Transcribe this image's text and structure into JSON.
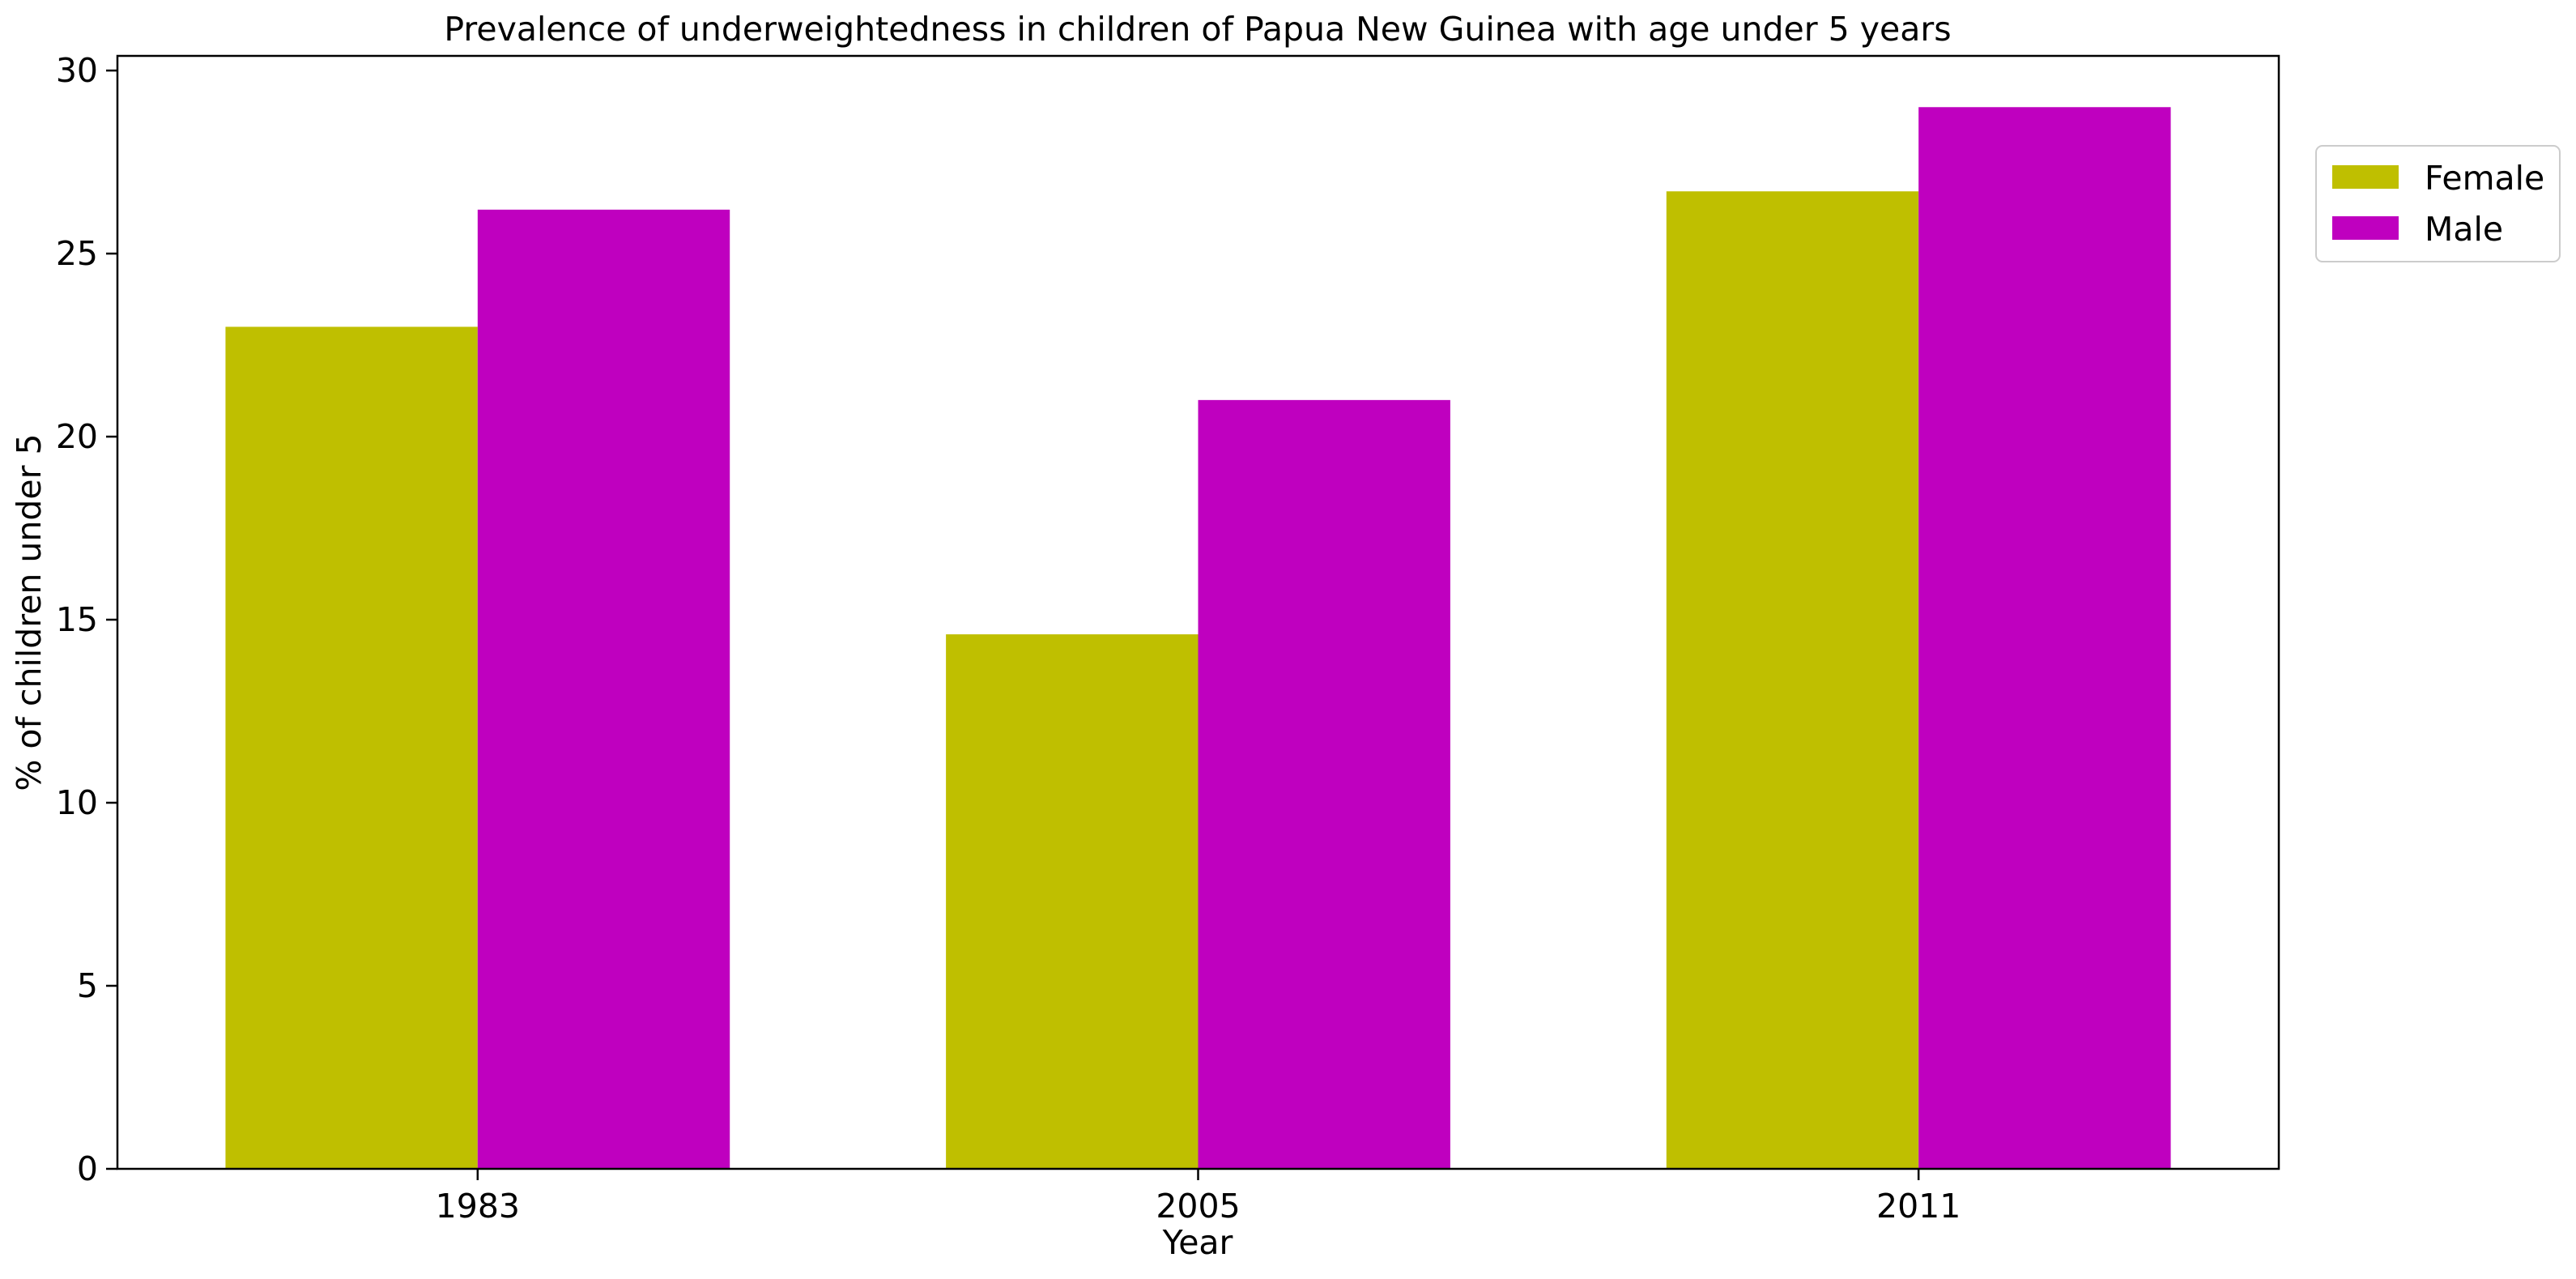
{
  "chart_data": {
    "type": "bar",
    "title": "Prevalence of underweightedness in children of Papua New Guinea with age under 5 years",
    "xlabel": "Year",
    "ylabel": "% of children under 5",
    "categories": [
      "1983",
      "2005",
      "2011"
    ],
    "series": [
      {
        "name": "Female",
        "color": "#bfbf00",
        "values": [
          23.0,
          14.6,
          26.7
        ]
      },
      {
        "name": "Male",
        "color": "#bf00bf",
        "values": [
          26.2,
          21.0,
          29.0
        ]
      }
    ],
    "ylim": [
      0,
      30.4
    ],
    "yticks": [
      0,
      5,
      10,
      15,
      20,
      25,
      30
    ],
    "grid": false,
    "legend_position": "outside-top-right"
  }
}
